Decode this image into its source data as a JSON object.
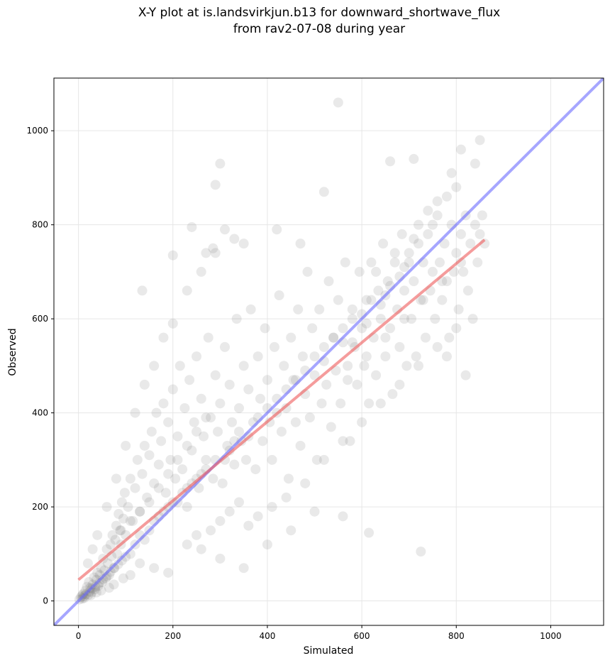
{
  "title_line1": "X-Y plot at is.landsvirkjun.b13 for downward_shortwave_flux",
  "title_line2": "from rav2-07-08 during year",
  "chart_data": {
    "type": "scatter",
    "xlabel": "Simulated",
    "ylabel": "Observed",
    "xlim": [
      -52,
      1112
    ],
    "ylim": [
      -52,
      1112
    ],
    "xticks": [
      0,
      200,
      400,
      600,
      800,
      1000
    ],
    "yticks": [
      0,
      200,
      400,
      600,
      800,
      1000
    ],
    "grid": true,
    "point_color": "#606060",
    "one_to_one_line": {
      "x": [
        -52,
        1112
      ],
      "y": [
        -52,
        1112
      ],
      "color": "#6b6bff"
    },
    "fit_line": {
      "x": [
        0,
        860
      ],
      "y": [
        45,
        768
      ],
      "color": "#ee5a5a"
    },
    "points": [
      [
        2,
        3
      ],
      [
        5,
        8
      ],
      [
        8,
        12
      ],
      [
        10,
        15
      ],
      [
        12,
        6
      ],
      [
        15,
        22
      ],
      [
        18,
        30
      ],
      [
        20,
        12
      ],
      [
        22,
        40
      ],
      [
        25,
        28
      ],
      [
        28,
        18
      ],
      [
        30,
        35
      ],
      [
        33,
        50
      ],
      [
        35,
        25
      ],
      [
        38,
        45
      ],
      [
        40,
        60
      ],
      [
        42,
        32
      ],
      [
        45,
        55
      ],
      [
        48,
        70
      ],
      [
        50,
        40
      ],
      [
        52,
        90
      ],
      [
        55,
        65
      ],
      [
        58,
        48
      ],
      [
        60,
        110
      ],
      [
        62,
        80
      ],
      [
        65,
        55
      ],
      [
        68,
        120
      ],
      [
        70,
        95
      ],
      [
        72,
        140
      ],
      [
        75,
        70
      ],
      [
        78,
        130
      ],
      [
        80,
        160
      ],
      [
        82,
        100
      ],
      [
        85,
        185
      ],
      [
        88,
        150
      ],
      [
        90,
        120
      ],
      [
        92,
        210
      ],
      [
        95,
        175
      ],
      [
        98,
        230
      ],
      [
        100,
        140
      ],
      [
        105,
        200
      ],
      [
        110,
        260
      ],
      [
        115,
        170
      ],
      [
        120,
        240
      ],
      [
        125,
        300
      ],
      [
        130,
        190
      ],
      [
        135,
        270
      ],
      [
        140,
        330
      ],
      [
        145,
        220
      ],
      [
        150,
        310
      ],
      [
        155,
        360
      ],
      [
        160,
        250
      ],
      [
        165,
        400
      ],
      [
        170,
        290
      ],
      [
        175,
        340
      ],
      [
        180,
        420
      ],
      [
        185,
        230
      ],
      [
        190,
        380
      ],
      [
        195,
        300
      ],
      [
        200,
        450
      ],
      [
        205,
        260
      ],
      [
        210,
        350
      ],
      [
        215,
        500
      ],
      [
        220,
        280
      ],
      [
        225,
        410
      ],
      [
        230,
        200
      ],
      [
        235,
        470
      ],
      [
        240,
        320
      ],
      [
        245,
        380
      ],
      [
        250,
        520
      ],
      [
        255,
        240
      ],
      [
        260,
        430
      ],
      [
        265,
        350
      ],
      [
        270,
        300
      ],
      [
        275,
        560
      ],
      [
        280,
        390
      ],
      [
        285,
        260
      ],
      [
        290,
        480
      ],
      [
        295,
        360
      ],
      [
        300,
        420
      ],
      [
        305,
        250
      ],
      [
        310,
        540
      ],
      [
        315,
        330
      ],
      [
        320,
        460
      ],
      [
        325,
        380
      ],
      [
        330,
        290
      ],
      [
        335,
        600
      ],
      [
        340,
        410
      ],
      [
        345,
        340
      ],
      [
        350,
        500
      ],
      [
        355,
        300
      ],
      [
        360,
        450
      ],
      [
        365,
        620
      ],
      [
        370,
        380
      ],
      [
        375,
        280
      ],
      [
        380,
        520
      ],
      [
        385,
        430
      ],
      [
        390,
        340
      ],
      [
        395,
        580
      ],
      [
        400,
        470
      ],
      [
        405,
        380
      ],
      [
        410,
        300
      ],
      [
        415,
        540
      ],
      [
        420,
        430
      ],
      [
        425,
        650
      ],
      [
        430,
        360
      ],
      [
        435,
        500
      ],
      [
        440,
        410
      ],
      [
        445,
        260
      ],
      [
        450,
        560
      ],
      [
        455,
        470
      ],
      [
        460,
        380
      ],
      [
        465,
        620
      ],
      [
        470,
        330
      ],
      [
        475,
        520
      ],
      [
        480,
        440
      ],
      [
        485,
        700
      ],
      [
        490,
        390
      ],
      [
        495,
        580
      ],
      [
        500,
        480
      ],
      [
        505,
        300
      ],
      [
        510,
        620
      ],
      [
        515,
        420
      ],
      [
        520,
        540
      ],
      [
        525,
        460
      ],
      [
        530,
        680
      ],
      [
        535,
        370
      ],
      [
        540,
        560
      ],
      [
        545,
        490
      ],
      [
        550,
        640
      ],
      [
        555,
        420
      ],
      [
        560,
        580
      ],
      [
        565,
        720
      ],
      [
        570,
        500
      ],
      [
        575,
        340
      ],
      [
        580,
        620
      ],
      [
        585,
        540
      ],
      [
        590,
        460
      ],
      [
        595,
        700
      ],
      [
        600,
        580
      ],
      [
        605,
        500
      ],
      [
        610,
        640
      ],
      [
        615,
        420
      ],
      [
        620,
        720
      ],
      [
        625,
        560
      ],
      [
        630,
        480
      ],
      [
        635,
        660
      ],
      [
        640,
        600
      ],
      [
        645,
        760
      ],
      [
        650,
        520
      ],
      [
        655,
        680
      ],
      [
        660,
        580
      ],
      [
        665,
        440
      ],
      [
        670,
        720
      ],
      [
        675,
        620
      ],
      [
        680,
        540
      ],
      [
        685,
        780
      ],
      [
        690,
        660
      ],
      [
        695,
        500
      ],
      [
        700,
        740
      ],
      [
        705,
        600
      ],
      [
        710,
        680
      ],
      [
        715,
        520
      ],
      [
        720,
        800
      ],
      [
        725,
        640
      ],
      [
        730,
        720
      ],
      [
        735,
        560
      ],
      [
        740,
        780
      ],
      [
        745,
        660
      ],
      [
        750,
        700
      ],
      [
        755,
        600
      ],
      [
        760,
        820
      ],
      [
        765,
        720
      ],
      [
        770,
        640
      ],
      [
        775,
        760
      ],
      [
        780,
        680
      ],
      [
        785,
        560
      ],
      [
        790,
        800
      ],
      [
        795,
        700
      ],
      [
        800,
        740
      ],
      [
        805,
        620
      ],
      [
        810,
        780
      ],
      [
        815,
        700
      ],
      [
        820,
        820
      ],
      [
        825,
        660
      ],
      [
        830,
        760
      ],
      [
        835,
        600
      ],
      [
        840,
        800
      ],
      [
        845,
        720
      ],
      [
        850,
        780
      ],
      [
        855,
        820
      ],
      [
        860,
        760
      ],
      [
        8,
        5
      ],
      [
        12,
        10
      ],
      [
        16,
        14
      ],
      [
        24,
        20
      ],
      [
        28,
        26
      ],
      [
        36,
        30
      ],
      [
        44,
        38
      ],
      [
        52,
        46
      ],
      [
        60,
        52
      ],
      [
        68,
        62
      ],
      [
        76,
        70
      ],
      [
        84,
        78
      ],
      [
        92,
        86
      ],
      [
        100,
        94
      ],
      [
        20,
        80
      ],
      [
        30,
        110
      ],
      [
        40,
        140
      ],
      [
        60,
        200
      ],
      [
        80,
        260
      ],
      [
        100,
        330
      ],
      [
        120,
        400
      ],
      [
        140,
        460
      ],
      [
        160,
        500
      ],
      [
        180,
        560
      ],
      [
        200,
        590
      ],
      [
        230,
        660
      ],
      [
        260,
        700
      ],
      [
        290,
        740
      ],
      [
        300,
        930
      ],
      [
        290,
        885
      ],
      [
        520,
        870
      ],
      [
        550,
        1060
      ],
      [
        660,
        935
      ],
      [
        710,
        940
      ],
      [
        810,
        960
      ],
      [
        850,
        980
      ],
      [
        790,
        910
      ],
      [
        840,
        930
      ],
      [
        135,
        660
      ],
      [
        200,
        735
      ],
      [
        240,
        795
      ],
      [
        270,
        740
      ],
      [
        285,
        750
      ],
      [
        310,
        790
      ],
      [
        330,
        770
      ],
      [
        350,
        760
      ],
      [
        420,
        790
      ],
      [
        470,
        760
      ],
      [
        725,
        105
      ],
      [
        615,
        145
      ],
      [
        560,
        180
      ],
      [
        500,
        190
      ],
      [
        450,
        150
      ],
      [
        400,
        120
      ],
      [
        350,
        70
      ],
      [
        300,
        90
      ],
      [
        260,
        110
      ],
      [
        230,
        120
      ],
      [
        190,
        60
      ],
      [
        160,
        70
      ],
      [
        130,
        80
      ],
      [
        110,
        55
      ],
      [
        95,
        48
      ],
      [
        75,
        35
      ],
      [
        65,
        28
      ],
      [
        48,
        22
      ],
      [
        38,
        18
      ],
      [
        26,
        12
      ],
      [
        320,
        320
      ],
      [
        340,
        360
      ],
      [
        360,
        350
      ],
      [
        380,
        390
      ],
      [
        400,
        410
      ],
      [
        420,
        400
      ],
      [
        440,
        450
      ],
      [
        460,
        470
      ],
      [
        480,
        490
      ],
      [
        500,
        520
      ],
      [
        520,
        510
      ],
      [
        540,
        560
      ],
      [
        560,
        550
      ],
      [
        580,
        600
      ],
      [
        600,
        610
      ],
      [
        620,
        640
      ],
      [
        640,
        630
      ],
      [
        660,
        670
      ],
      [
        680,
        690
      ],
      [
        700,
        720
      ],
      [
        150,
        150
      ],
      [
        170,
        180
      ],
      [
        190,
        200
      ],
      [
        210,
        210
      ],
      [
        230,
        240
      ],
      [
        250,
        260
      ],
      [
        270,
        280
      ],
      [
        290,
        300
      ],
      [
        310,
        300
      ],
      [
        330,
        340
      ],
      [
        120,
        120
      ],
      [
        110,
        100
      ],
      [
        130,
        140
      ],
      [
        140,
        130
      ],
      [
        160,
        170
      ],
      [
        180,
        190
      ],
      [
        200,
        210
      ],
      [
        220,
        230
      ],
      [
        240,
        250
      ],
      [
        260,
        270
      ],
      [
        520,
        300
      ],
      [
        560,
        340
      ],
      [
        600,
        380
      ],
      [
        640,
        420
      ],
      [
        680,
        460
      ],
      [
        720,
        500
      ],
      [
        760,
        540
      ],
      [
        800,
        580
      ],
      [
        820,
        480
      ],
      [
        780,
        520
      ],
      [
        480,
        250
      ],
      [
        440,
        220
      ],
      [
        410,
        200
      ],
      [
        380,
        180
      ],
      [
        360,
        160
      ],
      [
        340,
        210
      ],
      [
        320,
        190
      ],
      [
        300,
        170
      ],
      [
        280,
        150
      ],
      [
        250,
        140
      ],
      [
        230,
        330
      ],
      [
        250,
        360
      ],
      [
        270,
        390
      ],
      [
        210,
        300
      ],
      [
        190,
        270
      ],
      [
        170,
        240
      ],
      [
        150,
        210
      ],
      [
        130,
        190
      ],
      [
        110,
        170
      ],
      [
        90,
        150
      ],
      [
        570,
        470
      ],
      [
        610,
        520
      ],
      [
        650,
        560
      ],
      [
        690,
        600
      ],
      [
        730,
        640
      ],
      [
        770,
        680
      ],
      [
        810,
        720
      ],
      [
        630,
        700
      ],
      [
        670,
        740
      ],
      [
        710,
        770
      ],
      [
        740,
        830
      ],
      [
        760,
        850
      ],
      [
        780,
        860
      ],
      [
        800,
        880
      ],
      [
        750,
        800
      ],
      [
        720,
        760
      ],
      [
        690,
        710
      ],
      [
        650,
        650
      ],
      [
        610,
        590
      ],
      [
        580,
        550
      ]
    ]
  }
}
